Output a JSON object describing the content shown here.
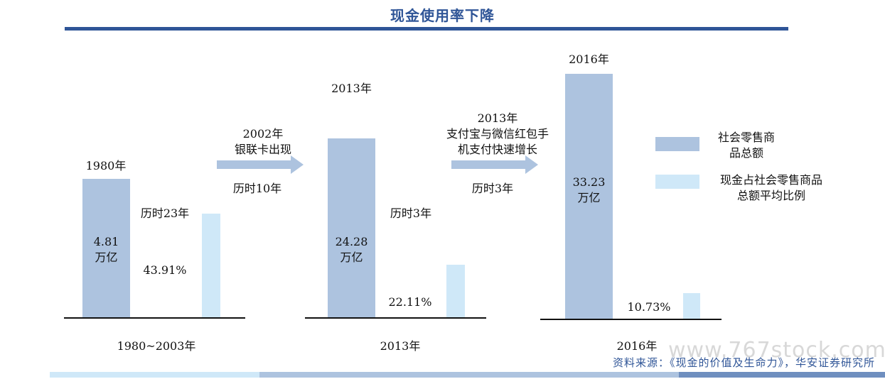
{
  "title": "现金使用率下降",
  "colors": {
    "title": "#2f5597",
    "retail": "#adc3df",
    "cash": "#cfe8f8",
    "arrow": "#adc3df"
  },
  "chart_data": {
    "type": "bar",
    "title": "现金使用率下降",
    "series": [
      {
        "name": "社会零售商品总额",
        "unit": "万亿",
        "values": [
          4.81,
          24.28,
          33.23
        ]
      },
      {
        "name": "现金占社会零售商品总额平均比例",
        "unit": "%",
        "values": [
          43.91,
          22.11,
          10.73
        ]
      }
    ],
    "groups": [
      {
        "year_label": "1980年",
        "period_label": "1980~2003年",
        "retail_value": "4.81",
        "retail_unit": "万亿",
        "cash_pct": "43.91%",
        "duration": "历时23年"
      },
      {
        "year_label": "2013年",
        "period_label": "2013年",
        "retail_value": "24.28",
        "retail_unit": "万亿",
        "cash_pct": "22.11%",
        "duration": "历时3年"
      },
      {
        "year_label": "2016年",
        "period_label": "2016年",
        "retail_value": "33.23",
        "retail_unit": "万亿",
        "cash_pct": "10.73%"
      }
    ],
    "legend_placement": "right"
  },
  "arrows": [
    {
      "line1": "2002年",
      "line2": "银联卡出现",
      "duration": "历时10年"
    },
    {
      "line1": "2013年",
      "line2": "支付宝与微信红包手",
      "line3": "机支付快速增长",
      "duration": "历时3年"
    }
  ],
  "legend": [
    {
      "line1": "社会零售商",
      "line2": "品总额"
    },
    {
      "line1": "现金占社会零售商品",
      "line2": "总额平均比例"
    }
  ],
  "source": "资料来源：《现金的价值及生命力》，华安证券研究所",
  "watermark": "www.767stock.com"
}
